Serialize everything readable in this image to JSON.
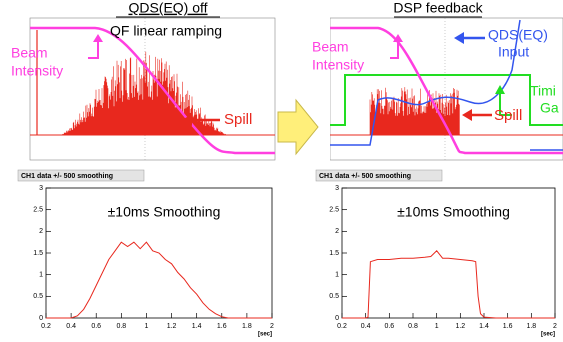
{
  "panels": [
    {
      "title": "QDS(EQ) off",
      "subtitle": "QF linear ramping",
      "beam": [
        "Beam",
        "Intensity"
      ],
      "spill": "Spill"
    },
    {
      "title": "DSP feedback",
      "beam": [
        "Beam",
        "Intensity"
      ],
      "input": [
        "QDS(EQ)",
        "Input"
      ],
      "gate": [
        "Timi",
        "Ga"
      ],
      "spill": "Spill"
    }
  ],
  "chart_data": [
    {
      "type": "line",
      "header": "CH1 data +/- 500 smoothing",
      "title": "±10ms Smoothing",
      "xlabel": "[sec]",
      "x": [
        0.2,
        0.25,
        0.3,
        0.35,
        0.4,
        0.45,
        0.5,
        0.55,
        0.6,
        0.65,
        0.7,
        0.75,
        0.8,
        0.85,
        0.9,
        0.95,
        1.0,
        1.05,
        1.1,
        1.15,
        1.2,
        1.25,
        1.3,
        1.35,
        1.4,
        1.45,
        1.5,
        1.55,
        1.6,
        1.65,
        1.7,
        1.8,
        1.9,
        2.0
      ],
      "color": "#e8281e",
      "values": [
        0,
        0,
        0,
        0,
        0,
        0.05,
        0.2,
        0.45,
        0.75,
        1.05,
        1.35,
        1.55,
        1.75,
        1.65,
        1.75,
        1.6,
        1.75,
        1.55,
        1.5,
        1.35,
        1.25,
        1.05,
        0.9,
        0.7,
        0.55,
        0.35,
        0.2,
        0.1,
        0.03,
        0,
        0,
        0,
        0,
        0
      ],
      "xlim": [
        0.2,
        2
      ],
      "ylim": [
        0,
        3
      ],
      "xticks": [
        0.2,
        0.4,
        0.6,
        0.8,
        1,
        1.2,
        1.4,
        1.6,
        1.8,
        2
      ],
      "yticks": [
        0,
        0.5,
        1,
        1.5,
        2,
        2.5,
        3
      ]
    },
    {
      "type": "line",
      "header": "CH1 data +/- 500 smoothing",
      "title": "±10ms Smoothing",
      "xlabel": "[sec]",
      "x": [
        0.2,
        0.3,
        0.4,
        0.42,
        0.44,
        0.5,
        0.6,
        0.7,
        0.8,
        0.9,
        0.95,
        1.0,
        1.05,
        1.1,
        1.2,
        1.3,
        1.33,
        1.35,
        1.37,
        1.4,
        1.5,
        1.6,
        1.8,
        2.0
      ],
      "color": "#e8281e",
      "values": [
        0,
        0,
        0,
        0.02,
        1.3,
        1.35,
        1.35,
        1.38,
        1.38,
        1.4,
        1.42,
        1.55,
        1.38,
        1.38,
        1.35,
        1.32,
        1.3,
        0.5,
        0.1,
        0.02,
        0,
        0,
        0,
        0
      ],
      "xlim": [
        0.2,
        2
      ],
      "ylim": [
        0,
        3
      ],
      "xticks": [
        0.2,
        0.4,
        0.6,
        0.8,
        1,
        1.2,
        1.4,
        1.6,
        1.8,
        2
      ],
      "yticks": [
        0,
        0.5,
        1,
        1.5,
        2,
        2.5,
        3
      ]
    }
  ]
}
